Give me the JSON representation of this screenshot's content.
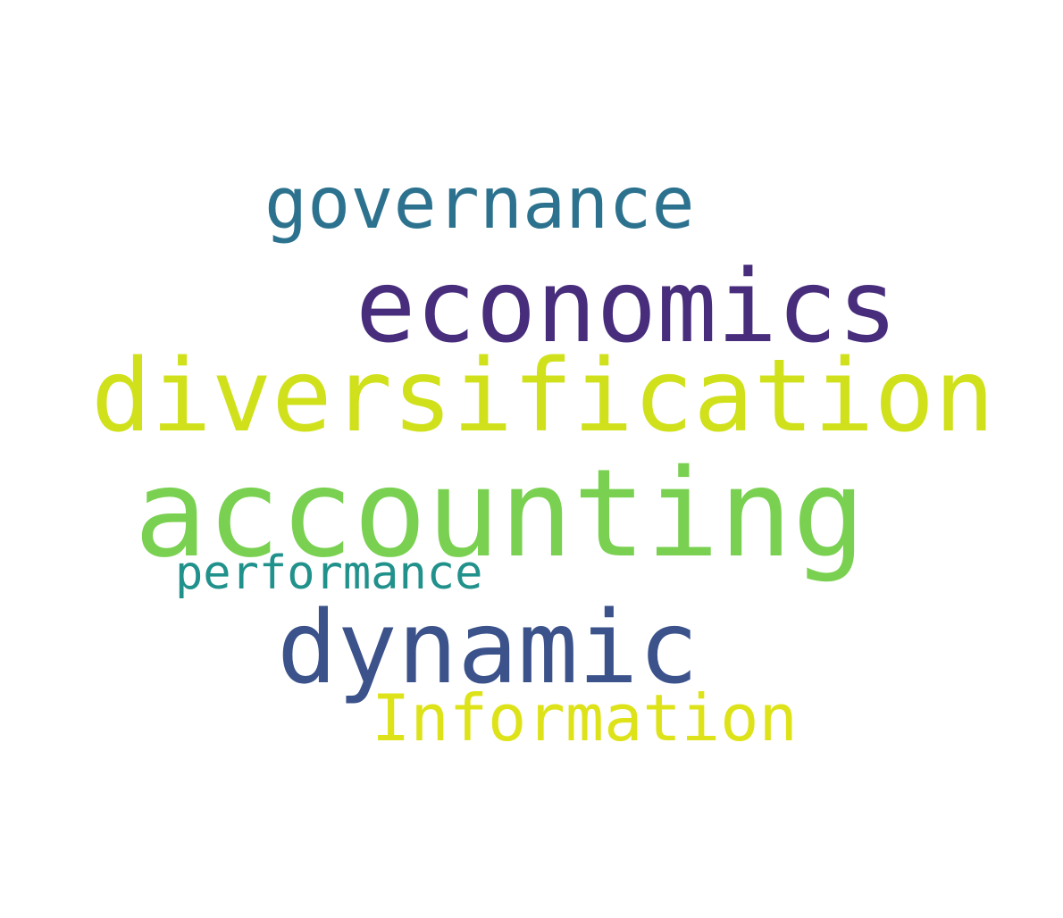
{
  "words": [
    {
      "text": "governance",
      "color": "#2c728e"
    },
    {
      "text": "economics",
      "color": "#472d7b"
    },
    {
      "text": "diversification",
      "color": "#d0e11c"
    },
    {
      "text": "accounting",
      "color": "#7ad151"
    },
    {
      "text": "performance",
      "color": "#21918c"
    },
    {
      "text": "dynamic",
      "color": "#3b528b"
    },
    {
      "text": "Information",
      "color": "#dde318"
    }
  ]
}
